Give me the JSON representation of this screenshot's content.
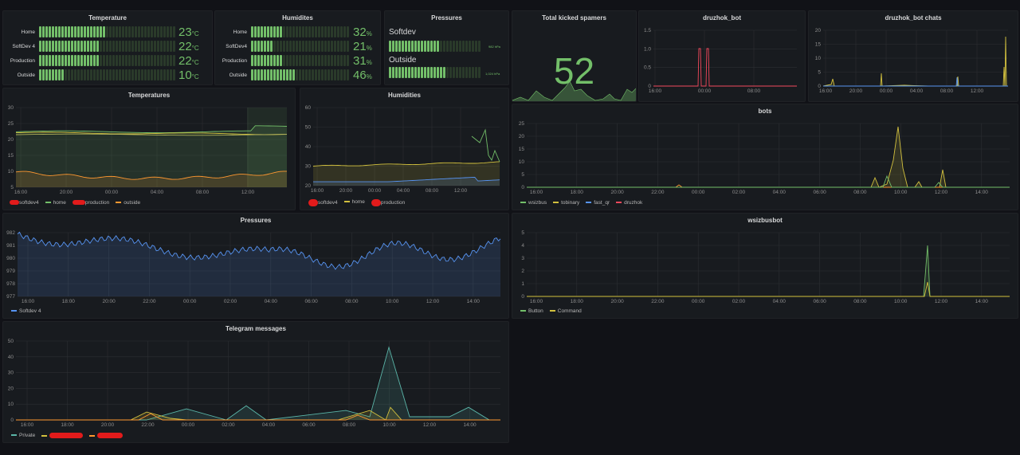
{
  "colors": {
    "green": "#73bf69",
    "yellow": "#d2c03e",
    "orange": "#ff9830",
    "blue": "#5794f2",
    "red": "#f2495c",
    "teal": "#5ab5a8"
  },
  "gauges": {
    "temperature": {
      "title": "Temperature",
      "unit": "°C",
      "rows": [
        {
          "label": "Home",
          "value": "23",
          "fill": 0.48
        },
        {
          "label": "SoftDev 4",
          "value": "22",
          "fill": 0.44
        },
        {
          "label": "Production",
          "value": "22",
          "fill": 0.44
        },
        {
          "label": "Outside",
          "value": "10",
          "fill": 0.18
        }
      ]
    },
    "humidity": {
      "title": "Humidites",
      "unit": "%",
      "rows": [
        {
          "label": "Home",
          "value": "32",
          "fill": 0.32
        },
        {
          "label": "SoftDev4",
          "value": "21",
          "fill": 0.21
        },
        {
          "label": "Production",
          "value": "31",
          "fill": 0.31
        },
        {
          "label": "Outside",
          "value": "46",
          "fill": 0.46
        }
      ]
    },
    "pressures": {
      "title": "Pressures",
      "rows": [
        {
          "label": "Softdev",
          "unit": "982 hPa",
          "fill": 0.55
        },
        {
          "label": "Outside",
          "unit": "1,024 hPa",
          "fill": 0.61
        }
      ]
    }
  },
  "stat": {
    "title": "Total kicked spamers",
    "value": "52"
  },
  "panels": {
    "druzhok_bot": {
      "title": "druzhok_bot",
      "yticks": [
        "1.5",
        "1.0",
        "0.5",
        "0"
      ],
      "xticks": [
        "16:00",
        "00:00",
        "08:00"
      ]
    },
    "druzhok_chats": {
      "title": "druzhok_bot chats",
      "yticks": [
        "20",
        "15",
        "10",
        "5",
        "0"
      ],
      "xticks": [
        "16:00",
        "20:00",
        "00:00",
        "04:00",
        "08:00",
        "12:00"
      ]
    },
    "temperatures": {
      "title": "Temperatures",
      "yticks": [
        "30",
        "25",
        "20",
        "15",
        "10",
        "5"
      ],
      "xticks": [
        "16:00",
        "20:00",
        "00:00",
        "04:00",
        "08:00",
        "12:00"
      ],
      "legend": [
        "softdev4",
        "home",
        "production",
        "outside"
      ]
    },
    "humidities": {
      "title": "Humidities",
      "yticks": [
        "60",
        "50",
        "40",
        "30",
        "20"
      ],
      "xticks": [
        "16:00",
        "20:00",
        "00:00",
        "04:00",
        "08:00",
        "12:00"
      ],
      "legend": [
        "softdev4",
        "home",
        "production"
      ]
    },
    "bots": {
      "title": "bots",
      "yticks": [
        "25",
        "20",
        "15",
        "10",
        "5",
        "0"
      ],
      "xticks": [
        "16:00",
        "18:00",
        "20:00",
        "22:00",
        "00:00",
        "02:00",
        "04:00",
        "06:00",
        "08:00",
        "10:00",
        "12:00",
        "14:00"
      ],
      "legend": [
        "wsizbus",
        "tobinary",
        "fast_qr",
        "druzhok"
      ]
    },
    "pressures": {
      "title": "Pressures",
      "yticks": [
        "982",
        "981",
        "980",
        "979",
        "978",
        "977"
      ],
      "xticks": [
        "16:00",
        "18:00",
        "20:00",
        "22:00",
        "00:00",
        "02:00",
        "04:00",
        "06:00",
        "08:00",
        "10:00",
        "12:00",
        "14:00"
      ],
      "legend": [
        "Softdev 4"
      ]
    },
    "wsizbusbot": {
      "title": "wsizbusbot",
      "yticks": [
        "5",
        "4",
        "3",
        "2",
        "1",
        "0"
      ],
      "xticks": [
        "16:00",
        "18:00",
        "20:00",
        "22:00",
        "00:00",
        "02:00",
        "04:00",
        "06:00",
        "08:00",
        "10:00",
        "12:00",
        "14:00"
      ],
      "legend": [
        "Button",
        "Command"
      ]
    },
    "telegram": {
      "title": "Telegram messages",
      "yticks": [
        "50",
        "40",
        "30",
        "20",
        "10",
        "0"
      ],
      "xticks": [
        "16:00",
        "18:00",
        "20:00",
        "22:00",
        "00:00",
        "02:00",
        "04:00",
        "06:00",
        "08:00",
        "10:00",
        "12:00",
        "14:00"
      ],
      "legend": [
        "Private"
      ]
    }
  }
}
